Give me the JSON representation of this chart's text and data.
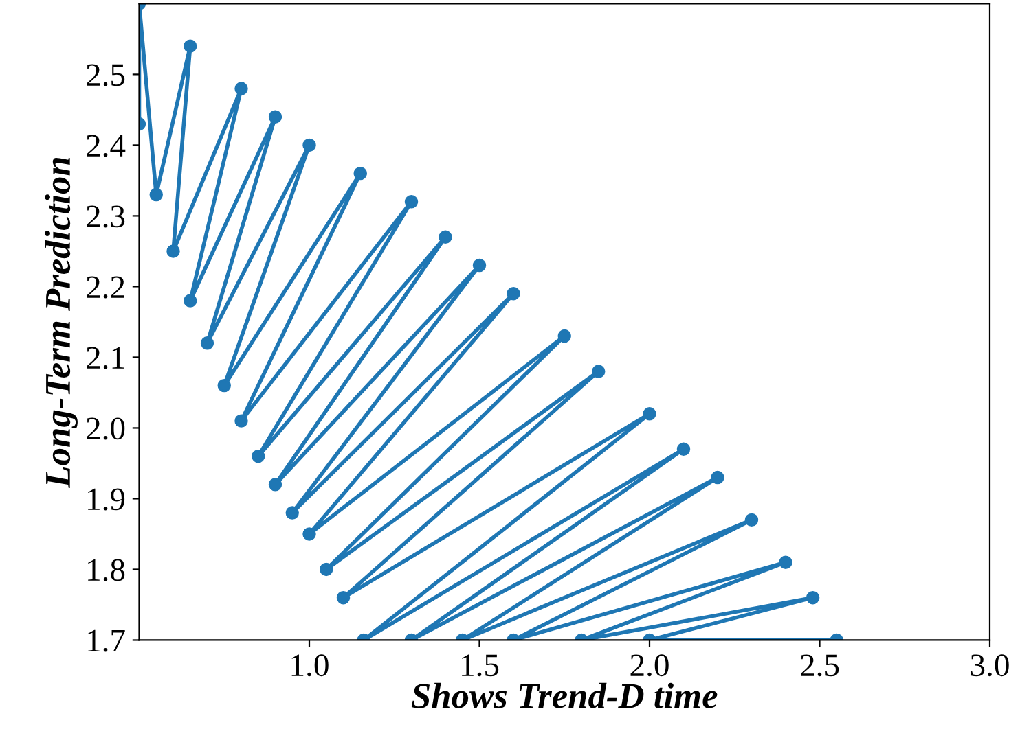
{
  "chart_data": {
    "type": "line",
    "xlabel": "Shows Trend-D time",
    "ylabel": "Long-Term Prediction",
    "x": [
      0.5,
      0.5,
      0.55,
      0.65,
      0.6,
      0.8,
      0.65,
      0.9,
      0.7,
      1.0,
      0.75,
      1.15,
      0.8,
      1.3,
      0.85,
      1.4,
      0.9,
      1.5,
      0.95,
      1.6,
      1.0,
      1.75,
      1.05,
      1.85,
      1.1,
      2.0,
      1.16,
      2.1,
      1.3,
      2.2,
      1.45,
      2.3,
      1.6,
      2.4,
      1.8,
      2.48,
      2.0,
      2.55
    ],
    "values": [
      2.43,
      2.6,
      2.33,
      2.54,
      2.25,
      2.48,
      2.18,
      2.44,
      2.12,
      2.4,
      2.06,
      2.36,
      2.01,
      2.32,
      1.96,
      2.27,
      1.92,
      2.23,
      1.88,
      2.19,
      1.85,
      2.13,
      1.8,
      2.08,
      1.76,
      2.02,
      1.7,
      1.97,
      1.7,
      1.93,
      1.7,
      1.87,
      1.7,
      1.81,
      1.7,
      1.76,
      1.7,
      1.7
    ],
    "color": "#1f77b4",
    "marker": "circle",
    "line_style": "solid",
    "xlim": [
      0.5,
      3.0
    ],
    "ylim": [
      1.7,
      2.6
    ],
    "xticks": [
      {
        "value": 1,
        "label": "1.0"
      },
      1.5,
      {
        "value": 2,
        "label": "2.0"
      },
      2.5,
      {
        "value": 3,
        "label": "3.0"
      }
    ],
    "yticks": [
      1.7,
      1.8,
      1.9,
      {
        "value": 2,
        "label": "2.0"
      },
      2.1,
      2.2,
      2.3,
      2.4,
      2.5
    ],
    "grid": false,
    "legend": false
  }
}
